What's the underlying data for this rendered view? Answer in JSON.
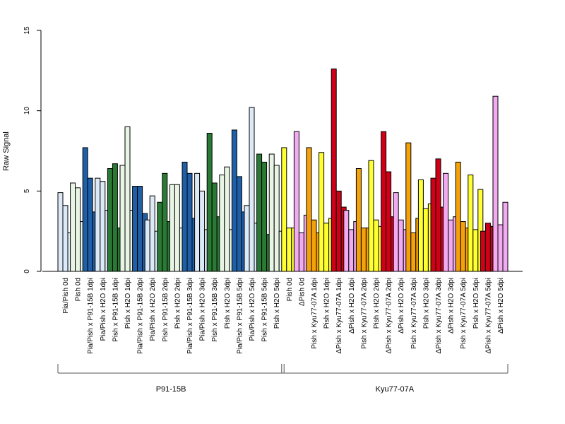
{
  "colors": {
    "pale": "#dce9f7",
    "blue": "#1f5fa8",
    "pale_green": "#e8f4e4",
    "green": "#2a7a35",
    "yellow": "#ffff33",
    "pink": "#f2aaf0",
    "orange": "#f5a20a",
    "red": "#d10019"
  },
  "chart_data": {
    "type": "bar",
    "title": "",
    "xlabel": "",
    "ylabel": "Raw Signal",
    "ylim": [
      0,
      15
    ],
    "yticks": [
      "0",
      "5",
      "10",
      "15"
    ],
    "legend": "none",
    "categories": [
      {
        "label": "Pia/Pish 0d",
        "color": "pale",
        "values": [
          4.9,
          4.1,
          2.4
        ]
      },
      {
        "label": "Pish 0d",
        "color": "pale_green",
        "values": [
          5.5,
          5.2,
          3.1
        ]
      },
      {
        "label": "Pia/Pish x P91-15B 1dpi",
        "color": "blue",
        "values": [
          7.7,
          5.8,
          3.7
        ]
      },
      {
        "label": "Pia/Pish x H2O 1dpi",
        "color": "pale",
        "values": [
          5.8,
          5.6,
          3.8
        ]
      },
      {
        "label": "Pish x P91-15B 1dpi",
        "color": "green",
        "values": [
          6.4,
          6.7,
          2.7
        ]
      },
      {
        "label": "Pish x H2O 1dpi",
        "color": "pale_green",
        "values": [
          6.6,
          9.0,
          3.8
        ]
      },
      {
        "label": "Pia/Pish x P91-15B 2dpi",
        "color": "blue",
        "values": [
          5.3,
          5.3,
          3.6
        ]
      },
      {
        "label": "Pia/Pish x H2O 2dpi",
        "color": "pale",
        "values": [
          3.2,
          4.7,
          2.5
        ]
      },
      {
        "label": "Pish x P91-15B 2dpi",
        "color": "green",
        "values": [
          4.3,
          6.1,
          3.1
        ]
      },
      {
        "label": "Pish x H2O 2dpi",
        "color": "pale_green",
        "values": [
          5.4,
          5.4,
          2.7
        ]
      },
      {
        "label": "Pia/Pish x P91-15B 3dpi",
        "color": "blue",
        "values": [
          6.8,
          6.1,
          3.3
        ]
      },
      {
        "label": "Pia/Pish x H2O 3dpi",
        "color": "pale",
        "values": [
          6.1,
          5.0,
          2.6
        ]
      },
      {
        "label": "Pish x P91-15B 3dpi",
        "color": "green",
        "values": [
          8.6,
          5.5,
          3.4
        ]
      },
      {
        "label": "Pish x H2O 3dpi",
        "color": "pale_green",
        "values": [
          6.0,
          6.5,
          2.6
        ]
      },
      {
        "label": "Pia/Pish x P91-15B 5dpi",
        "color": "blue",
        "values": [
          8.8,
          5.9,
          3.7
        ]
      },
      {
        "label": "Pia/Pish x H2O 5dpi",
        "color": "pale",
        "values": [
          4.1,
          10.2,
          3.0
        ]
      },
      {
        "label": "Pish x P91-15B 5dpi",
        "color": "green",
        "values": [
          7.3,
          6.8,
          2.3
        ]
      },
      {
        "label": "Pish x H2O 5dpi",
        "color": "pale_green",
        "values": [
          7.3,
          6.6,
          2.5
        ]
      },
      {
        "label": "Pish 0d",
        "color": "yellow",
        "values": [
          7.7,
          2.7,
          2.7
        ]
      },
      {
        "label": "ΔPish 0d",
        "color": "pink",
        "values": [
          8.7,
          2.4,
          3.5
        ]
      },
      {
        "label": "Pish x Kyu77-07A 1dpi",
        "color": "orange",
        "values": [
          7.7,
          3.2,
          2.4
        ]
      },
      {
        "label": "Pish x H2O 1dpi",
        "color": "yellow",
        "values": [
          7.4,
          3.0,
          3.3
        ]
      },
      {
        "label": "ΔPish x Kyu77-07A 1dpi",
        "color": "red",
        "values": [
          12.6,
          5.0,
          4.0
        ]
      },
      {
        "label": "ΔPish x H2O 1dpi",
        "color": "pink",
        "values": [
          3.8,
          2.6,
          3.1
        ]
      },
      {
        "label": "Pish x Kyu77-07A 2dpi",
        "color": "orange",
        "values": [
          6.4,
          2.7,
          2.7
        ]
      },
      {
        "label": "Pish x H2O 2dpi",
        "color": "yellow",
        "values": [
          6.9,
          3.2,
          2.8
        ]
      },
      {
        "label": "ΔPish x Kyu77-07A 2dpi",
        "color": "red",
        "values": [
          8.7,
          6.2,
          3.4
        ]
      },
      {
        "label": "ΔPish x H2O 2dpi",
        "color": "pink",
        "values": [
          4.9,
          3.2,
          2.6
        ]
      },
      {
        "label": "Pish x Kyu77-07A 3dpi",
        "color": "orange",
        "values": [
          8.0,
          2.4,
          3.3
        ]
      },
      {
        "label": "Pish x H2O 3dpi",
        "color": "yellow",
        "values": [
          5.7,
          3.9,
          4.2
        ]
      },
      {
        "label": "ΔPish x Kyu77-07A 3dpi",
        "color": "red",
        "values": [
          5.8,
          7.0,
          4.0
        ]
      },
      {
        "label": "ΔPish x H2O 3dpi",
        "color": "pink",
        "values": [
          6.1,
          3.2,
          3.4
        ]
      },
      {
        "label": "Pish x Kyu77-07A 5dpi",
        "color": "orange",
        "values": [
          6.8,
          3.1,
          2.7
        ]
      },
      {
        "label": "Pish x H2O 5dpi",
        "color": "yellow",
        "values": [
          6.0,
          2.6,
          5.1
        ]
      },
      {
        "label": "ΔPish x Kyu77-07A 5dpi",
        "color": "red",
        "values": [
          2.5,
          3.0,
          2.8
        ]
      },
      {
        "label": "ΔPish x H2O 5dpi",
        "color": "pink",
        "values": [
          10.9,
          2.9,
          4.3
        ]
      }
    ],
    "groups": [
      {
        "label": "P91-15B",
        "from": 0,
        "to": 17
      },
      {
        "label": "Kyu77-07A",
        "from": 18,
        "to": 35
      }
    ]
  }
}
